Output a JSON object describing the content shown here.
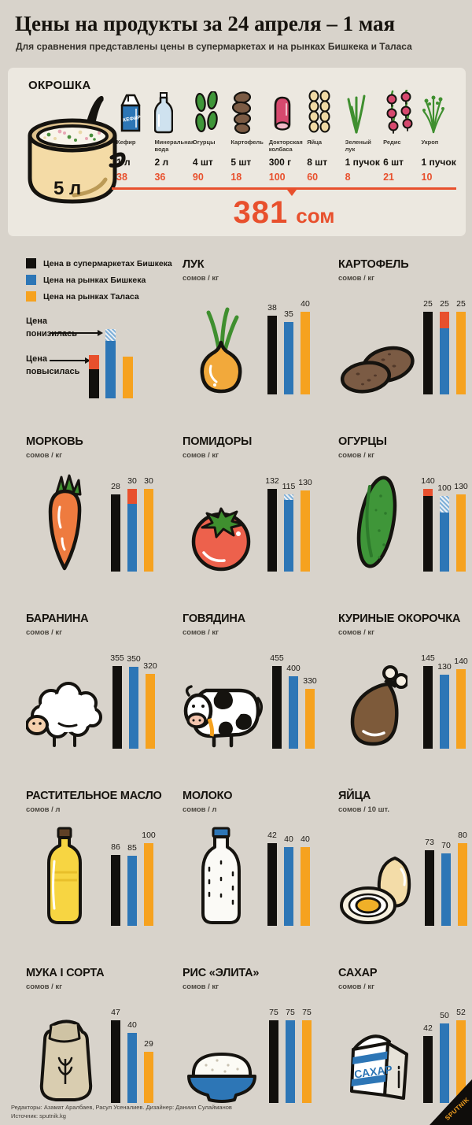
{
  "header": {
    "title": "Цены на продукты за 24 апреля – 1 мая",
    "subtitle": "Для сравнения представлены цены в супермаркетах и на рынках Бишкека и Таласа"
  },
  "recipe": {
    "title": "ОКРОШКА",
    "pot_label": "5 л",
    "total": "381",
    "total_unit": "сом",
    "ingredients": [
      {
        "name": "Кефир",
        "qty": "1 л",
        "price": "38",
        "icon": "kefir-carton",
        "icon_text": "КЕФИР"
      },
      {
        "name": "Минеральная вода",
        "qty": "2 л",
        "price": "36",
        "icon": "water-bottle"
      },
      {
        "name": "Огурцы",
        "qty": "4 шт",
        "price": "90",
        "icon": "cucumbers-small"
      },
      {
        "name": "Картофель",
        "qty": "5 шт",
        "price": "18",
        "icon": "potatoes-small"
      },
      {
        "name": "Докторская колбаса",
        "qty": "300 г",
        "price": "100",
        "icon": "sausage"
      },
      {
        "name": "Яйца",
        "qty": "8 шт",
        "price": "60",
        "icon": "eggs-small"
      },
      {
        "name": "Зеленый лук",
        "qty": "1 пучок",
        "price": "8",
        "icon": "green-onion"
      },
      {
        "name": "Редис",
        "qty": "6 шт",
        "price": "21",
        "icon": "radishes"
      },
      {
        "name": "Укроп",
        "qty": "1 пучок",
        "price": "10",
        "icon": "dill"
      }
    ]
  },
  "legend": {
    "items": [
      {
        "label": "Цена в супермаркетах Бишкека",
        "color": "#12100d"
      },
      {
        "label": "Цена на рынках Бишкека",
        "color": "#2d76b6"
      },
      {
        "label": "Цена на рынках Таласа",
        "color": "#f6a21f"
      }
    ],
    "down_label": "Цена понизилась",
    "up_label": "Цена повысилась"
  },
  "chart_data": {
    "type": "bar",
    "series_labels": [
      "Цена в супермаркетах Бишкека",
      "Цена на рынках Бишкека",
      "Цена на рынках Таласа"
    ],
    "series_colors": [
      "#12100d",
      "#2d76b6",
      "#f6a21f"
    ],
    "accent_up_color": "#e8502d",
    "ylabel": "",
    "grid": false,
    "charts": [
      {
        "key": "luk",
        "title": "ЛУК",
        "unit": "сомов / кг",
        "icon": "onion",
        "values": [
          38,
          35,
          40
        ],
        "changes": [
          null,
          null,
          null
        ]
      },
      {
        "key": "kartofel",
        "title": "КАРТОФЕЛЬ",
        "unit": "сомов / кг",
        "icon": "potatoes",
        "values": [
          25,
          25,
          25
        ],
        "changes": [
          null,
          {
            "dir": "up",
            "ratio": 0.2
          },
          null
        ]
      },
      {
        "key": "morkov",
        "title": "МОРКОВЬ",
        "unit": "сомов / кг",
        "icon": "carrot",
        "values": [
          28,
          30,
          30
        ],
        "changes": [
          null,
          {
            "dir": "up",
            "ratio": 0.18
          },
          null
        ]
      },
      {
        "key": "pomidory",
        "title": "ПОМИДОРЫ",
        "unit": "сомов / кг",
        "icon": "tomato",
        "values": [
          132,
          115,
          130
        ],
        "changes": [
          null,
          {
            "dir": "down",
            "ratio": 0.08
          },
          null
        ]
      },
      {
        "key": "ogurtsy",
        "title": "ОГУРЦЫ",
        "unit": "сомов / кг",
        "icon": "cucumber",
        "values": [
          140,
          100,
          130
        ],
        "changes": [
          {
            "dir": "up",
            "ratio": 0.09
          },
          {
            "dir": "down",
            "ratio": 0.28
          },
          null
        ]
      },
      {
        "key": "baranina",
        "title": "БАРАНИНА",
        "unit": "сомов / кг",
        "icon": "sheep",
        "values": [
          355,
          350,
          320
        ],
        "changes": [
          null,
          null,
          null
        ]
      },
      {
        "key": "govyadina",
        "title": "ГОВЯДИНА",
        "unit": "сомов / кг",
        "icon": "cow",
        "values": [
          455,
          400,
          330
        ],
        "changes": [
          null,
          null,
          null
        ]
      },
      {
        "key": "kurinye-okorochka",
        "title": "КУРИНЫЕ ОКОРОЧКА",
        "unit": "сомов / кг",
        "icon": "chicken-leg",
        "values": [
          145,
          130,
          140
        ],
        "changes": [
          null,
          null,
          null
        ]
      },
      {
        "key": "rastitelnoe-maslo",
        "title": "РАСТИТЕЛЬНОЕ МАСЛО",
        "unit": "сомов / л",
        "icon": "oil-bottle",
        "values": [
          86,
          85,
          100
        ],
        "changes": [
          null,
          null,
          null
        ]
      },
      {
        "key": "moloko",
        "title": "МОЛОКО",
        "unit": "сомов / л",
        "icon": "milk-bottle",
        "values": [
          42,
          40,
          40
        ],
        "changes": [
          null,
          null,
          null
        ]
      },
      {
        "key": "yajtsa",
        "title": "ЯЙЦА",
        "unit": "сомов / 10 шт.",
        "icon": "eggs-duo",
        "values": [
          73,
          70,
          80
        ],
        "changes": [
          null,
          null,
          null
        ]
      },
      {
        "key": "muka",
        "title": "МУКА I СОРТА",
        "unit": "сомов / кг",
        "icon": "flour-sack",
        "values": [
          47,
          40,
          29
        ],
        "changes": [
          null,
          null,
          null
        ]
      },
      {
        "key": "ris",
        "title": "РИС «ЭЛИТА»",
        "unit": "сомов / кг",
        "icon": "rice-bowl",
        "values": [
          75,
          75,
          75
        ],
        "changes": [
          null,
          null,
          null
        ]
      },
      {
        "key": "sahar",
        "title": "САХАР",
        "unit": "сомов / кг",
        "icon": "sugar-box",
        "icon_text": "САХАР",
        "values": [
          42,
          50,
          52
        ],
        "changes": [
          null,
          null,
          null
        ]
      }
    ]
  },
  "footer": {
    "credits": "Редакторы: Азамат Аралбаев, Расул Усеналиев. Дизайнер: Даниил Сулайманов",
    "source": "Источник: sputnik.kg",
    "logo": "SPUTNIK"
  }
}
